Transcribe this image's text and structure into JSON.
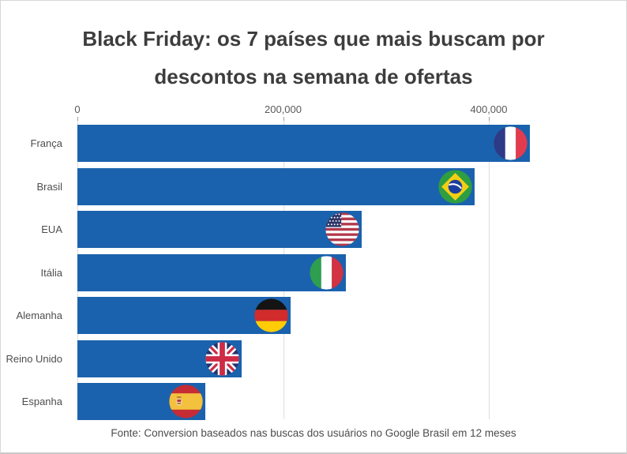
{
  "header": {
    "title_line1": "Black Friday: os 7 países que mais buscam por",
    "title_line2": "descontos na semana de ofertas"
  },
  "chart_data": {
    "type": "bar",
    "orientation": "horizontal",
    "title": "Black Friday: os 7 países que mais buscam por descontos na semana de ofertas",
    "categories": [
      "França",
      "Brasil",
      "EUA",
      "Itália",
      "Alemanha",
      "Reino Unido",
      "Espanha"
    ],
    "values": [
      440000,
      386000,
      276000,
      261000,
      207000,
      160000,
      124000
    ],
    "flags": [
      "france",
      "brazil",
      "usa",
      "italy",
      "germany",
      "uk",
      "spain"
    ],
    "bar_color": "#1A62AD",
    "x_axis": {
      "ticks": [
        0,
        200000,
        400000
      ],
      "tick_labels": [
        "0",
        "200,000",
        "400,000"
      ],
      "range": [
        0,
        460000
      ],
      "grid": true
    },
    "legend": "none",
    "source": "Fonte: Conversion baseados nas buscas dos usuários no Google Brasil em 12 meses"
  }
}
